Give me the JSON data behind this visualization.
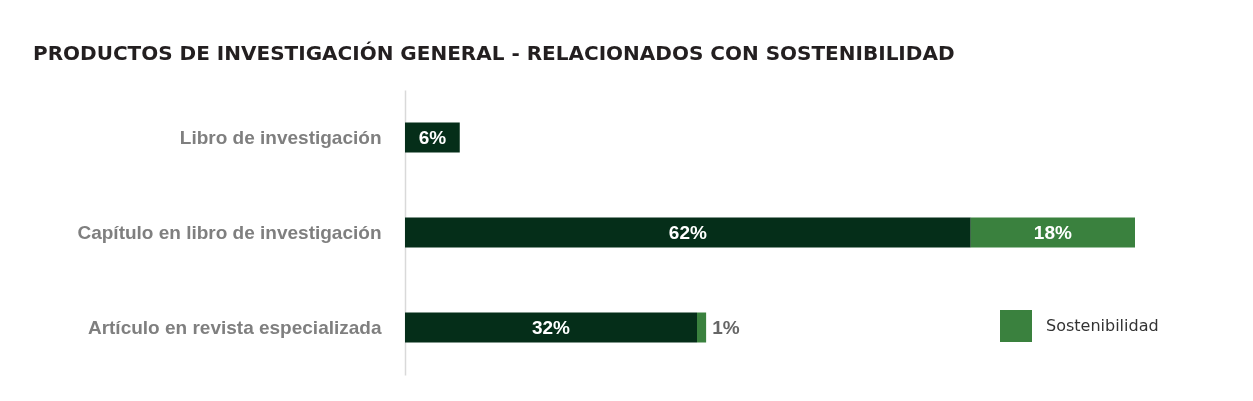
{
  "chart_data": {
    "type": "bar",
    "orientation": "horizontal",
    "stacked": true,
    "title": "PRODUCTOS DE INVESTIGACIÓN GENERAL - RELACIONADOS CON SOSTENIBILIDAD",
    "categories": [
      "Libro de investigación",
      "Capítulo en libro de investigación",
      "Artículo en revista especializada"
    ],
    "series": [
      {
        "color": "#052e19",
        "values": [
          6,
          62,
          32
        ],
        "value_labels": [
          "6%",
          "62%",
          "32%"
        ]
      },
      {
        "name": "Sostenibilidad",
        "color": "#3a813e",
        "values": [
          null,
          18,
          1
        ],
        "value_labels": [
          null,
          "18%",
          "1%"
        ]
      }
    ],
    "legend": "bottom right"
  }
}
